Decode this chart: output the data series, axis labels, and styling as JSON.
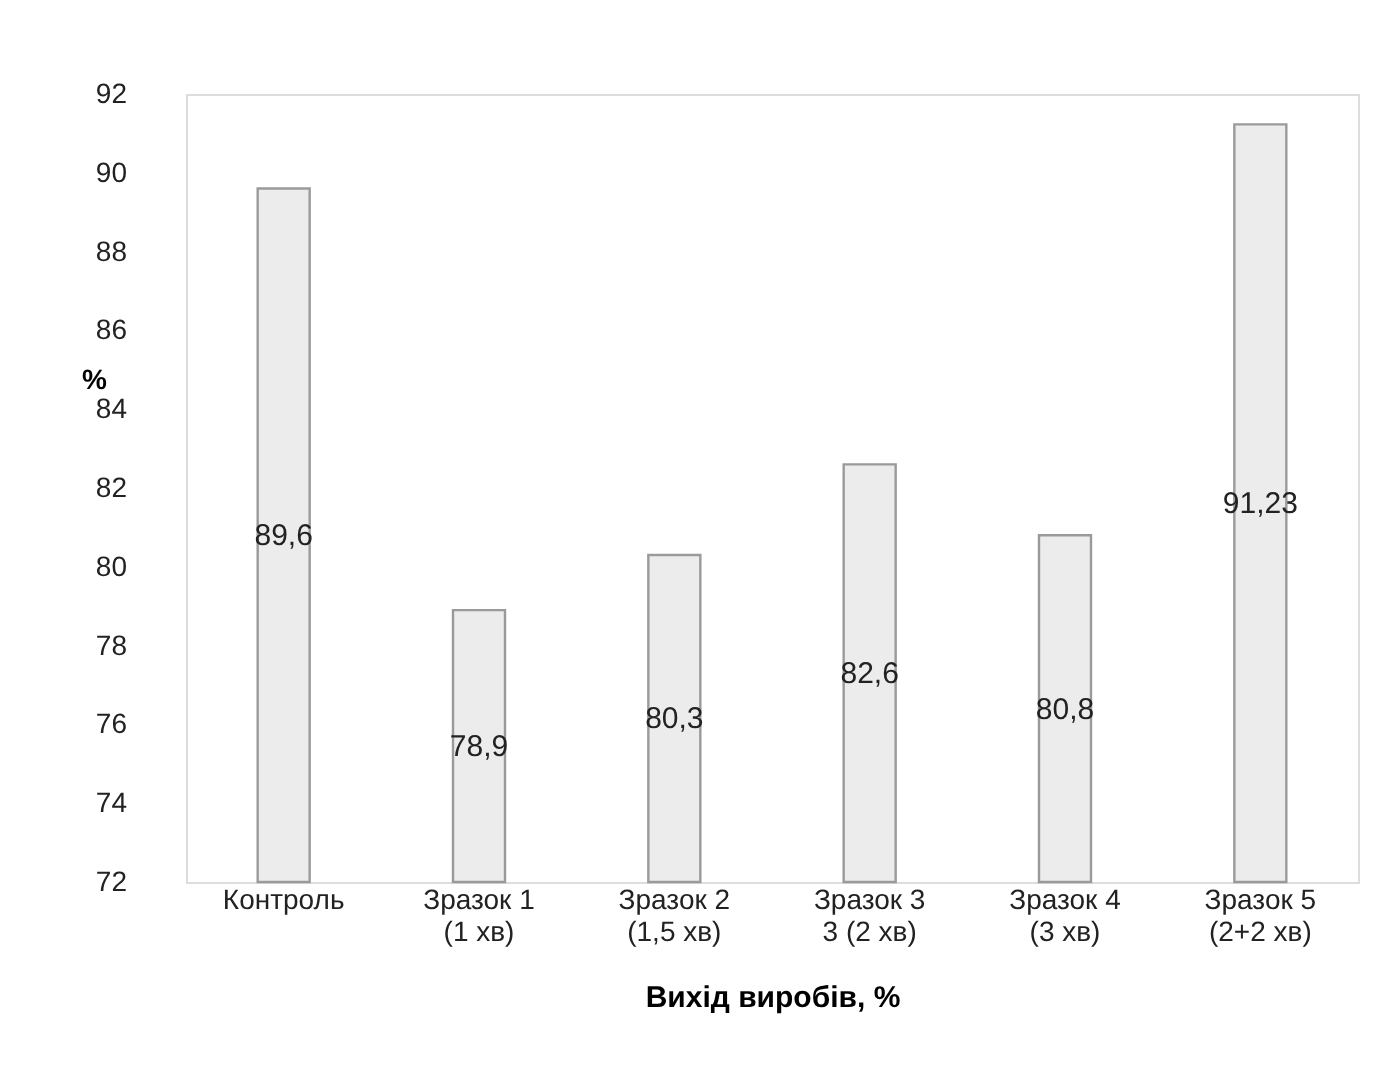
{
  "chart_data": {
    "type": "bar",
    "xlabel": "Вихід виробів, %",
    "ylabel": "%",
    "categories": [
      "Контроль",
      "Зразок 1\n(1 хв)",
      "Зразок 2\n(1,5 хв)",
      "Зразок 3\n3 (2 хв)",
      "Зразок 4\n(3 хв)",
      "Зразок 5\n(2+2 хв)"
    ],
    "values": [
      89.6,
      78.9,
      80.3,
      82.6,
      80.8,
      91.23
    ],
    "value_labels": [
      "89,6",
      "78,9",
      "80,3",
      "82,6",
      "80,8",
      "91,23"
    ],
    "color": "#ececec",
    "ylim": [
      72,
      92
    ],
    "yticks": [
      72,
      74,
      76,
      78,
      80,
      82,
      84,
      86,
      88,
      90,
      92
    ],
    "grid": false
  }
}
